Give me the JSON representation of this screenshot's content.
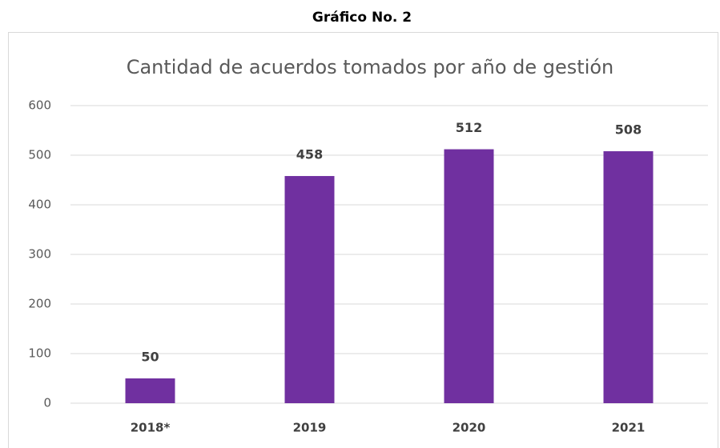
{
  "header": "Gráfico No. 2",
  "chart_data": {
    "type": "bar",
    "title": "Cantidad de acuerdos tomados por año de gestión",
    "categories": [
      "2018*",
      "2019",
      "2020",
      "2021"
    ],
    "values": [
      50,
      458,
      512,
      508
    ],
    "color": "#7030a0",
    "ylim": [
      0,
      600
    ],
    "yticks": [
      0,
      100,
      200,
      300,
      400,
      500,
      600
    ],
    "grid": true
  }
}
